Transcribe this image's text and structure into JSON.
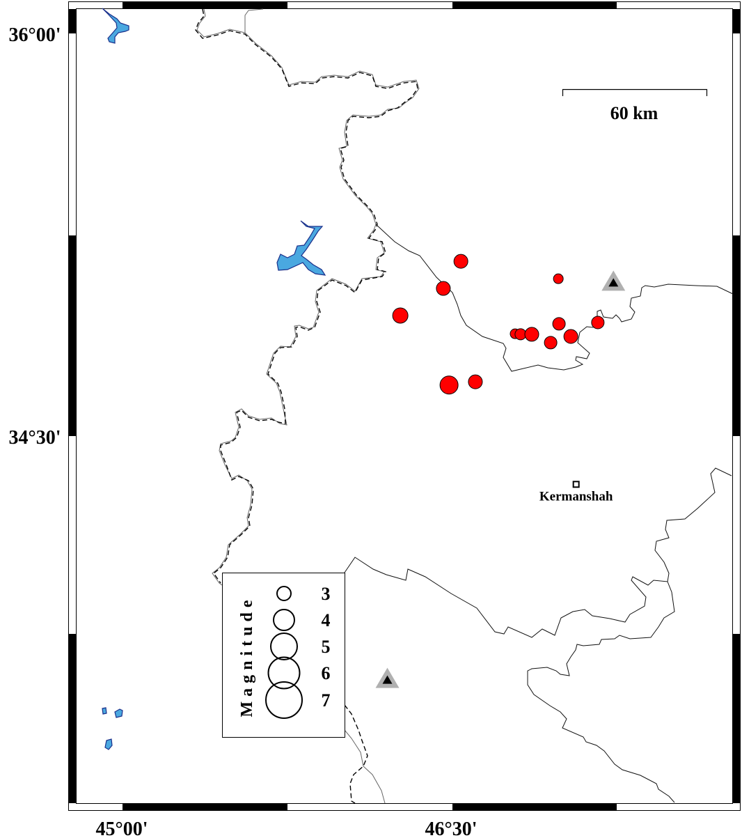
{
  "map": {
    "lat_labels": [
      "36°00'",
      "34°30'"
    ],
    "lon_labels": [
      "45°00'",
      "46°30'"
    ],
    "scale_bar": {
      "label": "60 km"
    },
    "city": {
      "name": "Kermanshah",
      "lon": 47.07,
      "lat": 34.32
    },
    "stations": [
      {
        "lon": 47.24,
        "lat": 35.07
      },
      {
        "lon": 46.21,
        "lat": 33.59
      }
    ],
    "event_color": "#ff0000",
    "lake_color": "#4aa8e0",
    "station_color": "#b0b0b0",
    "events": [
      {
        "lon": 46.545,
        "lat": 35.151,
        "mag": 3.0
      },
      {
        "lon": 46.465,
        "lat": 35.05,
        "mag": 3.0
      },
      {
        "lon": 46.269,
        "lat": 34.949,
        "mag": 3.2
      },
      {
        "lon": 46.491,
        "lat": 34.69,
        "mag": 3.6
      },
      {
        "lon": 46.611,
        "lat": 34.702,
        "mag": 3.0
      },
      {
        "lon": 46.989,
        "lat": 35.086,
        "mag": 2.4
      },
      {
        "lon": 46.792,
        "lat": 34.881,
        "mag": 2.4
      },
      {
        "lon": 46.817,
        "lat": 34.879,
        "mag": 2.6
      },
      {
        "lon": 46.868,
        "lat": 34.879,
        "mag": 3.0
      },
      {
        "lon": 46.954,
        "lat": 34.848,
        "mag": 2.8
      },
      {
        "lon": 46.992,
        "lat": 34.918,
        "mag": 2.8
      },
      {
        "lon": 47.046,
        "lat": 34.871,
        "mag": 3.0
      },
      {
        "lon": 47.169,
        "lat": 34.923,
        "mag": 2.8
      }
    ]
  },
  "legend": {
    "title": "Magnitude",
    "items": [
      {
        "label": "3",
        "mag": 3
      },
      {
        "label": "4",
        "mag": 4
      },
      {
        "label": "5",
        "mag": 5
      },
      {
        "label": "6",
        "mag": 6
      },
      {
        "label": "7",
        "mag": 7
      }
    ]
  }
}
